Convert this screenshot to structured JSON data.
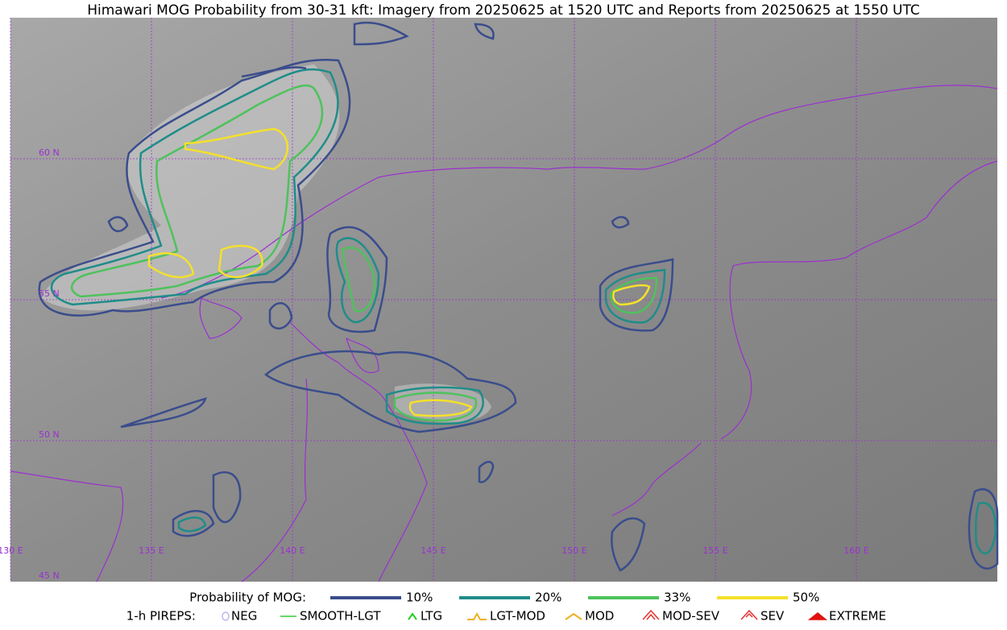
{
  "title": "Himawari MOG Probability from 30-31 kft: Imagery from 20250625 at 1520 UTC and Reports from 20250625 at 1550 UTC",
  "map": {
    "lat_labels": [
      "60 N",
      "55 N",
      "50 N",
      "45 N"
    ],
    "lon_labels": [
      "130 E",
      "135 E",
      "140 E",
      "145 E",
      "150 E",
      "155 E",
      "160 E"
    ]
  },
  "legend": {
    "probability": {
      "label": "Probability of MOG:",
      "items": [
        {
          "name": "10%",
          "color": "#3a4d8c"
        },
        {
          "name": "20%",
          "color": "#1f8d89"
        },
        {
          "name": "33%",
          "color": "#4ec25c"
        },
        {
          "name": "50%",
          "color": "#f4e02c"
        }
      ]
    },
    "pireps": {
      "label": "1-h PIREPS:",
      "items": [
        {
          "name": "NEG",
          "color": "#b9b9f0"
        },
        {
          "name": "SMOOTH-LGT",
          "color": "#33cc33"
        },
        {
          "name": "LTG",
          "color": "#22cc22"
        },
        {
          "name": "LGT-MOD",
          "color": "#f0b020"
        },
        {
          "name": "MOD",
          "color": "#f0b020"
        },
        {
          "name": "MOD-SEV",
          "color": "#e83030"
        },
        {
          "name": "SEV",
          "color": "#e83030"
        },
        {
          "name": "EXTREME",
          "color": "#e01010"
        }
      ]
    }
  }
}
